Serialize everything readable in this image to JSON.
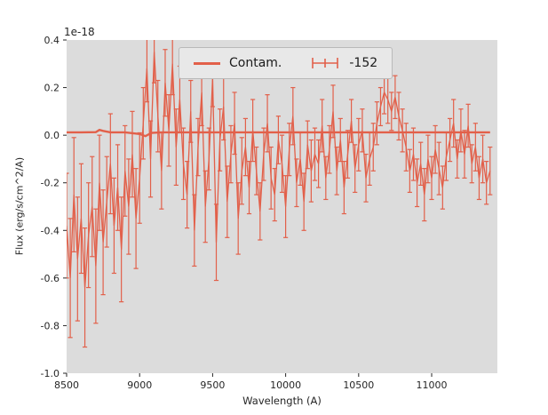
{
  "figure": {
    "offset_label": "1e-18",
    "xlabel": "Wavelength (A)",
    "ylabel": "Flux (erg/s/cm^2/A)",
    "bg_color": "#ffffff",
    "axes_bg_color": "#dcdcdc",
    "accent_color": "#e2604a",
    "tick_color": "#262626",
    "label_color": "#262626"
  },
  "legend": {
    "position": "upper center",
    "entries": [
      {
        "label": "Contam.",
        "type": "line"
      },
      {
        "label": "-152",
        "type": "errorbar"
      }
    ]
  },
  "chart_data": {
    "type": "line",
    "title": "",
    "xlabel": "Wavelength (A)",
    "ylabel": "Flux (erg/s/cm^2/A)",
    "y_offset_factor": "1e-18",
    "xlim": [
      8500,
      11450
    ],
    "ylim": [
      -1.0,
      0.4
    ],
    "xticks": [
      8500,
      9000,
      9500,
      10000,
      10500,
      11000
    ],
    "yticks": [
      -1.0,
      -0.8,
      -0.6,
      -0.4,
      -0.2,
      0.0,
      0.2,
      0.4
    ],
    "grid": false,
    "legend_position": "upper center",
    "series": [
      {
        "name": "-152",
        "type": "errorbar",
        "x": [
          8500,
          8525,
          8550,
          8575,
          8600,
          8625,
          8650,
          8675,
          8700,
          8725,
          8750,
          8775,
          8800,
          8825,
          8850,
          8875,
          8900,
          8925,
          8950,
          8975,
          9000,
          9025,
          9050,
          9075,
          9100,
          9125,
          9150,
          9175,
          9200,
          9225,
          9250,
          9275,
          9300,
          9325,
          9350,
          9375,
          9400,
          9425,
          9450,
          9475,
          9500,
          9525,
          9550,
          9575,
          9600,
          9625,
          9650,
          9675,
          9700,
          9725,
          9750,
          9775,
          9800,
          9825,
          9850,
          9875,
          9900,
          9925,
          9950,
          9975,
          10000,
          10025,
          10050,
          10075,
          10100,
          10125,
          10150,
          10175,
          10200,
          10225,
          10250,
          10275,
          10300,
          10325,
          10350,
          10375,
          10400,
          10425,
          10450,
          10475,
          10500,
          10525,
          10550,
          10575,
          10600,
          10625,
          10650,
          10675,
          10700,
          10725,
          10750,
          10775,
          10800,
          10825,
          10850,
          10875,
          10900,
          10925,
          10950,
          10975,
          11000,
          11025,
          11050,
          11075,
          11100,
          11125,
          11150,
          11175,
          11200,
          11225,
          11250,
          11275,
          11300,
          11325,
          11350,
          11375,
          11400
        ],
        "y": [
          -0.38,
          -0.6,
          -0.25,
          -0.52,
          -0.35,
          -0.64,
          -0.42,
          -0.3,
          -0.55,
          -0.2,
          -0.45,
          -0.28,
          -0.12,
          -0.38,
          -0.22,
          -0.48,
          -0.15,
          -0.3,
          -0.08,
          -0.35,
          -0.18,
          0.05,
          0.28,
          -0.1,
          0.35,
          0.08,
          -0.15,
          0.22,
          0.02,
          0.3,
          -0.05,
          0.15,
          -0.12,
          -0.25,
          0.1,
          -0.4,
          -0.05,
          0.18,
          -0.3,
          -0.1,
          0.24,
          -0.45,
          -0.02,
          0.12,
          -0.28,
          -0.08,
          0.05,
          -0.35,
          -0.15,
          -0.05,
          -0.22,
          0.02,
          -0.15,
          -0.32,
          -0.08,
          0.05,
          -0.18,
          -0.25,
          -0.02,
          -0.12,
          -0.3,
          -0.06,
          0.08,
          -0.2,
          -0.1,
          -0.28,
          -0.04,
          -0.15,
          -0.08,
          -0.12,
          0.04,
          -0.18,
          -0.06,
          0.1,
          -0.15,
          -0.02,
          -0.22,
          -0.08,
          0.06,
          -0.14,
          -0.04,
          0.02,
          -0.18,
          -0.1,
          -0.05,
          0.05,
          0.12,
          0.18,
          0.15,
          0.1,
          0.16,
          0.08,
          0.02,
          -0.05,
          -0.15,
          -0.08,
          -0.2,
          -0.12,
          -0.25,
          -0.1,
          -0.18,
          -0.06,
          -0.14,
          -0.22,
          -0.09,
          -0.02,
          0.05,
          -0.1,
          0.02,
          -0.08,
          0.04,
          -0.12,
          -0.05,
          -0.18,
          -0.1,
          -0.2,
          -0.15
        ],
        "yerr": [
          0.22,
          0.25,
          0.24,
          0.26,
          0.23,
          0.25,
          0.22,
          0.21,
          0.24,
          0.2,
          0.22,
          0.19,
          0.21,
          0.2,
          0.18,
          0.22,
          0.19,
          0.2,
          0.18,
          0.21,
          0.19,
          0.15,
          0.14,
          0.16,
          0.13,
          0.15,
          0.16,
          0.14,
          0.15,
          0.13,
          0.16,
          0.14,
          0.15,
          0.14,
          0.13,
          0.15,
          0.12,
          0.14,
          0.15,
          0.13,
          0.12,
          0.16,
          0.13,
          0.14,
          0.15,
          0.12,
          0.13,
          0.15,
          0.14,
          0.12,
          0.11,
          0.13,
          0.1,
          0.12,
          0.11,
          0.12,
          0.13,
          0.11,
          0.1,
          0.12,
          0.13,
          0.11,
          0.12,
          0.1,
          0.11,
          0.12,
          0.1,
          0.13,
          0.11,
          0.1,
          0.11,
          0.09,
          0.1,
          0.11,
          0.1,
          0.09,
          0.11,
          0.1,
          0.09,
          0.1,
          0.11,
          0.09,
          0.1,
          0.11,
          0.1,
          0.09,
          0.08,
          0.09,
          0.1,
          0.08,
          0.09,
          0.1,
          0.09,
          0.1,
          0.09,
          0.11,
          0.1,
          0.09,
          0.11,
          0.1,
          0.09,
          0.1,
          0.11,
          0.09,
          0.1,
          0.09,
          0.1,
          0.08,
          0.09,
          0.1,
          0.09,
          0.08,
          0.1,
          0.09,
          0.1,
          0.09,
          0.1
        ]
      },
      {
        "name": "Contam.",
        "type": "line",
        "x": [
          8500,
          8600,
          8700,
          8725,
          8750,
          8800,
          8900,
          9000,
          9040,
          9080,
          9150,
          9500,
          10000,
          10500,
          11000,
          11400
        ],
        "y": [
          0.012,
          0.012,
          0.013,
          0.022,
          0.018,
          0.012,
          0.012,
          0.005,
          -0.004,
          0.01,
          0.012,
          0.012,
          0.012,
          0.012,
          0.012,
          0.012
        ]
      }
    ]
  }
}
